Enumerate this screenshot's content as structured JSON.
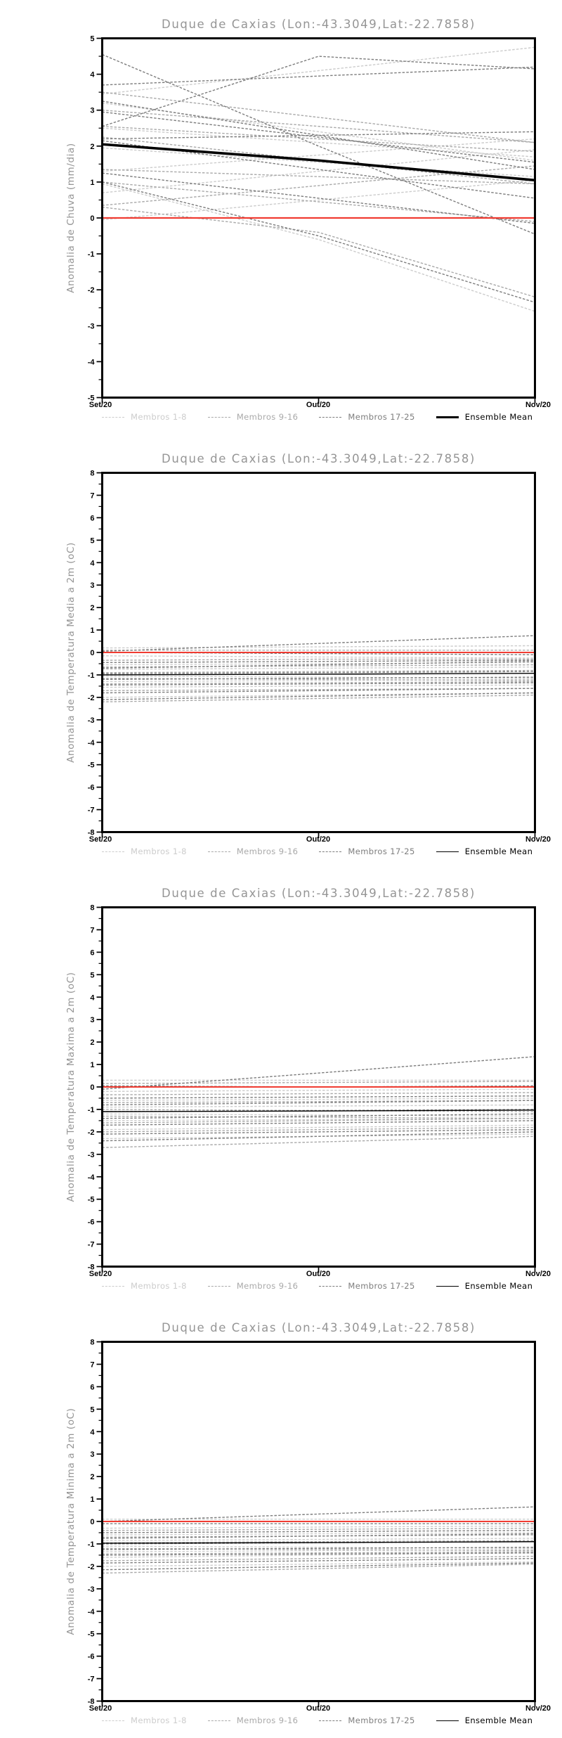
{
  "legend": {
    "items": [
      {
        "label": "Membros 1-8",
        "color": "#cccccc",
        "style": "dashed"
      },
      {
        "label": "Membros 9-16",
        "color": "#a9a9a9",
        "style": "dashed"
      },
      {
        "label": "Membros 17-25",
        "color": "#7d7d7d",
        "style": "dashed"
      },
      {
        "label": "Ensemble Mean",
        "color": "#000000",
        "style": "solid"
      }
    ]
  },
  "chart_data": [
    {
      "type": "line",
      "title": "Duque de Caxias (Lon:-43.3049,Lat:-22.7858)",
      "ylabel": "Anomalia de Chuva (mm/dia)",
      "x": [
        "Set/20",
        "Out/20",
        "Nov/20"
      ],
      "ylim": [
        -5,
        5
      ],
      "ytick_step": 1,
      "grid": false,
      "legend_position": "bottom",
      "zero_line": {
        "color": "#f03c32",
        "width": 2.2
      },
      "groups": [
        {
          "name": "Membros 1-8",
          "color": "#cccccc",
          "style": "dashed",
          "members": [
            [
              3.45,
              4.1,
              4.75
            ],
            [
              3.2,
              2.4,
              1.6
            ],
            [
              2.5,
              2.1,
              1.7
            ],
            [
              1.95,
              1.55,
              1.15
            ],
            [
              1.3,
              1.75,
              2.2
            ],
            [
              0.95,
              -0.6,
              -2.6
            ],
            [
              0.7,
              1.3,
              1.9
            ],
            [
              -0.05,
              0.5,
              1.05
            ]
          ]
        },
        {
          "name": "Membros 9-16",
          "color": "#a9a9a9",
          "style": "dashed",
          "members": [
            [
              3.5,
              2.8,
              2.1
            ],
            [
              3.0,
              2.55,
              2.1
            ],
            [
              2.55,
              2.2,
              1.85
            ],
            [
              2.25,
              1.6,
              0.95
            ],
            [
              1.35,
              1.15,
              0.95
            ],
            [
              1.0,
              0.45,
              -0.1
            ],
            [
              0.35,
              0.9,
              1.45
            ],
            [
              0.3,
              -0.4,
              -2.2
            ]
          ]
        },
        {
          "name": "Membros 17-25",
          "color": "#7d7d7d",
          "style": "dashed",
          "members": [
            [
              4.55,
              2.0,
              -0.45
            ],
            [
              3.7,
              3.95,
              4.2
            ],
            [
              3.25,
              2.3,
              1.35
            ],
            [
              2.95,
              2.25,
              1.55
            ],
            [
              2.55,
              4.5,
              4.15
            ],
            [
              2.2,
              2.3,
              2.4
            ],
            [
              2.15,
              1.35,
              0.55
            ],
            [
              1.25,
              0.55,
              -0.15
            ],
            [
              1.0,
              -0.5,
              -2.35
            ]
          ]
        }
      ],
      "ensemble_mean": {
        "name": "Ensemble Mean",
        "color": "#000000",
        "width": 3.6,
        "values": [
          2.05,
          1.6,
          1.05
        ]
      }
    },
    {
      "type": "line",
      "title": "Duque de Caxias (Lon:-43.3049,Lat:-22.7858)",
      "ylabel": "Anomalia de Temperatura Media a 2m (oC)",
      "x": [
        "Set/20",
        "Out/20",
        "Nov/20"
      ],
      "ylim": [
        -8,
        8
      ],
      "ytick_step": 1,
      "grid": false,
      "legend_position": "bottom",
      "zero_line": {
        "color": "#f03c32",
        "width": 2
      },
      "groups": [
        {
          "name": "Membros 1-8",
          "color": "#cccccc",
          "style": "dashed",
          "members": [
            [
              0.2,
              0.25,
              0.3
            ],
            [
              -0.15,
              -0.2,
              -0.25
            ],
            [
              -0.55,
              -0.5,
              -0.45
            ],
            [
              -0.75,
              -0.7,
              -0.65
            ],
            [
              -1.05,
              -1.1,
              -1.15
            ],
            [
              -1.3,
              -1.25,
              -1.2
            ],
            [
              -1.55,
              -1.5,
              -1.45
            ],
            [
              -2.0,
              -1.9,
              -1.8
            ]
          ]
        },
        {
          "name": "Membros 9-16",
          "color": "#a9a9a9",
          "style": "dashed",
          "members": [
            [
              0.1,
              0.1,
              0.1
            ],
            [
              -0.35,
              -0.3,
              -0.3
            ],
            [
              -0.65,
              -0.6,
              -0.55
            ],
            [
              -0.9,
              -0.85,
              -0.8
            ],
            [
              -1.15,
              -1.2,
              -1.25
            ],
            [
              -1.4,
              -1.35,
              -1.3
            ],
            [
              -1.7,
              -1.65,
              -1.6
            ],
            [
              -2.2,
              -2.05,
              -1.9
            ]
          ]
        },
        {
          "name": "Membros 17-25",
          "color": "#7d7d7d",
          "style": "dashed",
          "members": [
            [
              0.05,
              0.4,
              0.75
            ],
            [
              0.0,
              -0.05,
              -0.1
            ],
            [
              -0.45,
              -0.4,
              -0.35
            ],
            [
              -0.7,
              -0.55,
              -0.4
            ],
            [
              -0.95,
              -0.9,
              -0.85
            ],
            [
              -1.2,
              -1.15,
              -1.1
            ],
            [
              -1.45,
              -1.4,
              -1.35
            ],
            [
              -1.8,
              -1.7,
              -1.6
            ],
            [
              -2.1,
              -1.95,
              -1.8
            ]
          ]
        }
      ],
      "ensemble_mean": {
        "name": "Ensemble Mean",
        "color": "#000000",
        "width": 1.4,
        "values": [
          -1.0,
          -0.97,
          -0.93
        ]
      }
    },
    {
      "type": "line",
      "title": "Duque de Caxias (Lon:-43.3049,Lat:-22.7858)",
      "ylabel": "Anomalia de Temperatura Maxima a 2m (oC)",
      "x": [
        "Set/20",
        "Out/20",
        "Nov/20"
      ],
      "ylim": [
        -8,
        8
      ],
      "ytick_step": 1,
      "grid": false,
      "legend_position": "bottom",
      "zero_line": {
        "color": "#f03c32",
        "width": 2
      },
      "groups": [
        {
          "name": "Membros 1-8",
          "color": "#cccccc",
          "style": "dashed",
          "members": [
            [
              0.3,
              0.3,
              0.3
            ],
            [
              -0.2,
              -0.15,
              -0.1
            ],
            [
              -0.6,
              -0.55,
              -0.5
            ],
            [
              -0.9,
              -0.85,
              -0.8
            ],
            [
              -1.2,
              -1.25,
              -1.3
            ],
            [
              -1.5,
              -1.45,
              -1.4
            ],
            [
              -1.9,
              -1.8,
              -1.7
            ],
            [
              -2.3,
              -2.2,
              -2.1
            ]
          ]
        },
        {
          "name": "Membros 9-16",
          "color": "#a9a9a9",
          "style": "dashed",
          "members": [
            [
              0.15,
              0.2,
              0.25
            ],
            [
              -0.35,
              -0.3,
              -0.25
            ],
            [
              -0.7,
              -0.65,
              -0.6
            ],
            [
              -1.0,
              -1.05,
              -1.1
            ],
            [
              -1.3,
              -1.35,
              -1.4
            ],
            [
              -1.6,
              -1.5,
              -1.4
            ],
            [
              -2.0,
              -1.9,
              -1.8
            ],
            [
              -2.7,
              -2.45,
              -2.2
            ]
          ]
        },
        {
          "name": "Membros 17-25",
          "color": "#7d7d7d",
          "style": "dashed",
          "members": [
            [
              -0.1,
              0.62,
              1.35
            ],
            [
              0.05,
              0.0,
              0.05
            ],
            [
              -0.5,
              -0.45,
              -0.4
            ],
            [
              -0.8,
              -0.7,
              -0.6
            ],
            [
              -1.1,
              -1.05,
              -1.0
            ],
            [
              -1.4,
              -1.3,
              -1.2
            ],
            [
              -1.7,
              -1.6,
              -1.5
            ],
            [
              -2.1,
              -2.0,
              -1.9
            ],
            [
              -2.4,
              -2.2,
              -2.0
            ]
          ]
        }
      ],
      "ensemble_mean": {
        "name": "Ensemble Mean",
        "color": "#000000",
        "width": 1.4,
        "values": [
          -1.1,
          -1.07,
          -1.03
        ]
      }
    },
    {
      "type": "line",
      "title": "Duque de Caxias (Lon:-43.3049,Lat:-22.7858)",
      "ylabel": "Anomalia de Temperatura Minima a 2m (oC)",
      "x": [
        "Set/20",
        "Out/20",
        "Nov/20"
      ],
      "ylim": [
        -8,
        8
      ],
      "ytick_step": 1,
      "grid": false,
      "legend_position": "bottom",
      "zero_line": {
        "color": "#f03c32",
        "width": 2
      },
      "groups": [
        {
          "name": "Membros 1-8",
          "color": "#cccccc",
          "style": "dashed",
          "members": [
            [
              0.1,
              0.1,
              0.1
            ],
            [
              -0.3,
              -0.25,
              -0.2
            ],
            [
              -0.6,
              -0.55,
              -0.5
            ],
            [
              -0.85,
              -0.8,
              -0.75
            ],
            [
              -1.1,
              -1.15,
              -1.2
            ],
            [
              -1.35,
              -1.3,
              -1.25
            ],
            [
              -1.6,
              -1.5,
              -1.4
            ],
            [
              -2.0,
              -1.9,
              -1.8
            ]
          ]
        },
        {
          "name": "Membros 9-16",
          "color": "#a9a9a9",
          "style": "dashed",
          "members": [
            [
              0.0,
              0.0,
              0.0
            ],
            [
              -0.4,
              -0.35,
              -0.3
            ],
            [
              -0.7,
              -0.65,
              -0.6
            ],
            [
              -0.95,
              -0.9,
              -0.85
            ],
            [
              -1.2,
              -1.25,
              -1.3
            ],
            [
              -1.45,
              -1.4,
              -1.35
            ],
            [
              -1.75,
              -1.65,
              -1.55
            ],
            [
              -2.3,
              -2.1,
              -1.9
            ]
          ]
        },
        {
          "name": "Membros 17-25",
          "color": "#7d7d7d",
          "style": "dashed",
          "members": [
            [
              0.0,
              0.33,
              0.65
            ],
            [
              -0.1,
              -0.1,
              -0.1
            ],
            [
              -0.5,
              -0.45,
              -0.4
            ],
            [
              -0.75,
              -0.65,
              -0.55
            ],
            [
              -1.0,
              -0.95,
              -0.9
            ],
            [
              -1.25,
              -1.2,
              -1.15
            ],
            [
              -1.5,
              -1.45,
              -1.4
            ],
            [
              -1.85,
              -1.75,
              -1.65
            ],
            [
              -2.15,
              -2.0,
              -1.85
            ]
          ]
        }
      ],
      "ensemble_mean": {
        "name": "Ensemble Mean",
        "color": "#000000",
        "width": 1.4,
        "values": [
          -0.97,
          -0.94,
          -0.9
        ]
      }
    }
  ]
}
